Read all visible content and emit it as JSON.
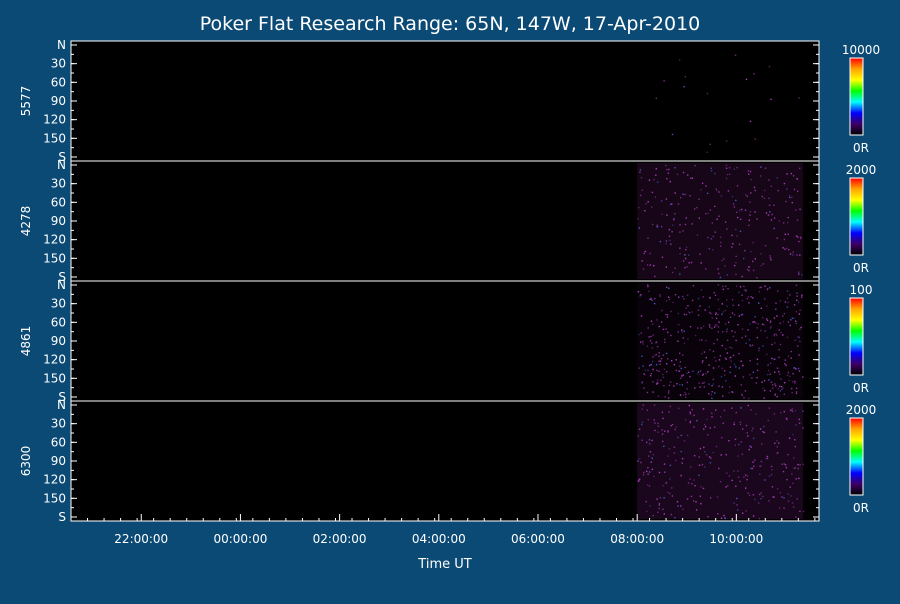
{
  "chart_data": {
    "type": "heatmap",
    "title": "Poker Flat Research Range: 65N, 147W, 17-Apr-2010",
    "xlabel": "Time UT",
    "x_ticks": [
      "22:00:00",
      "00:00:00",
      "02:00:00",
      "04:00:00",
      "06:00:00",
      "08:00:00",
      "10:00:00"
    ],
    "x_range": [
      "20:35:00",
      "11:40:00"
    ],
    "y_ticks": [
      "N",
      "30",
      "60",
      "90",
      "120",
      "150",
      "S"
    ],
    "y_range": [
      0,
      180
    ],
    "data_start": "08:00:00",
    "panels": [
      {
        "ylabel": "5577",
        "colorbar_max": "10000",
        "colorbar_min": "0R",
        "intensity": 0.0,
        "speckle": 0.02
      },
      {
        "ylabel": "4278",
        "colorbar_max": "2000",
        "colorbar_min": "0R",
        "intensity": 0.25,
        "speckle": 0.3
      },
      {
        "ylabel": "4861",
        "colorbar_max": "100",
        "colorbar_min": "0R",
        "intensity": 0.1,
        "speckle": 0.55
      },
      {
        "ylabel": "6300",
        "colorbar_max": "2000",
        "colorbar_min": "0R",
        "intensity": 0.3,
        "speckle": 0.35
      }
    ],
    "colors": {
      "background": "#0b4a75",
      "plot": "#000000",
      "signal": "#5a1660",
      "colorbar": [
        "#ff0000",
        "#ffa500",
        "#ffff00",
        "#00ff00",
        "#00ffff",
        "#0000ff",
        "#3c0064",
        "#000000"
      ]
    }
  }
}
